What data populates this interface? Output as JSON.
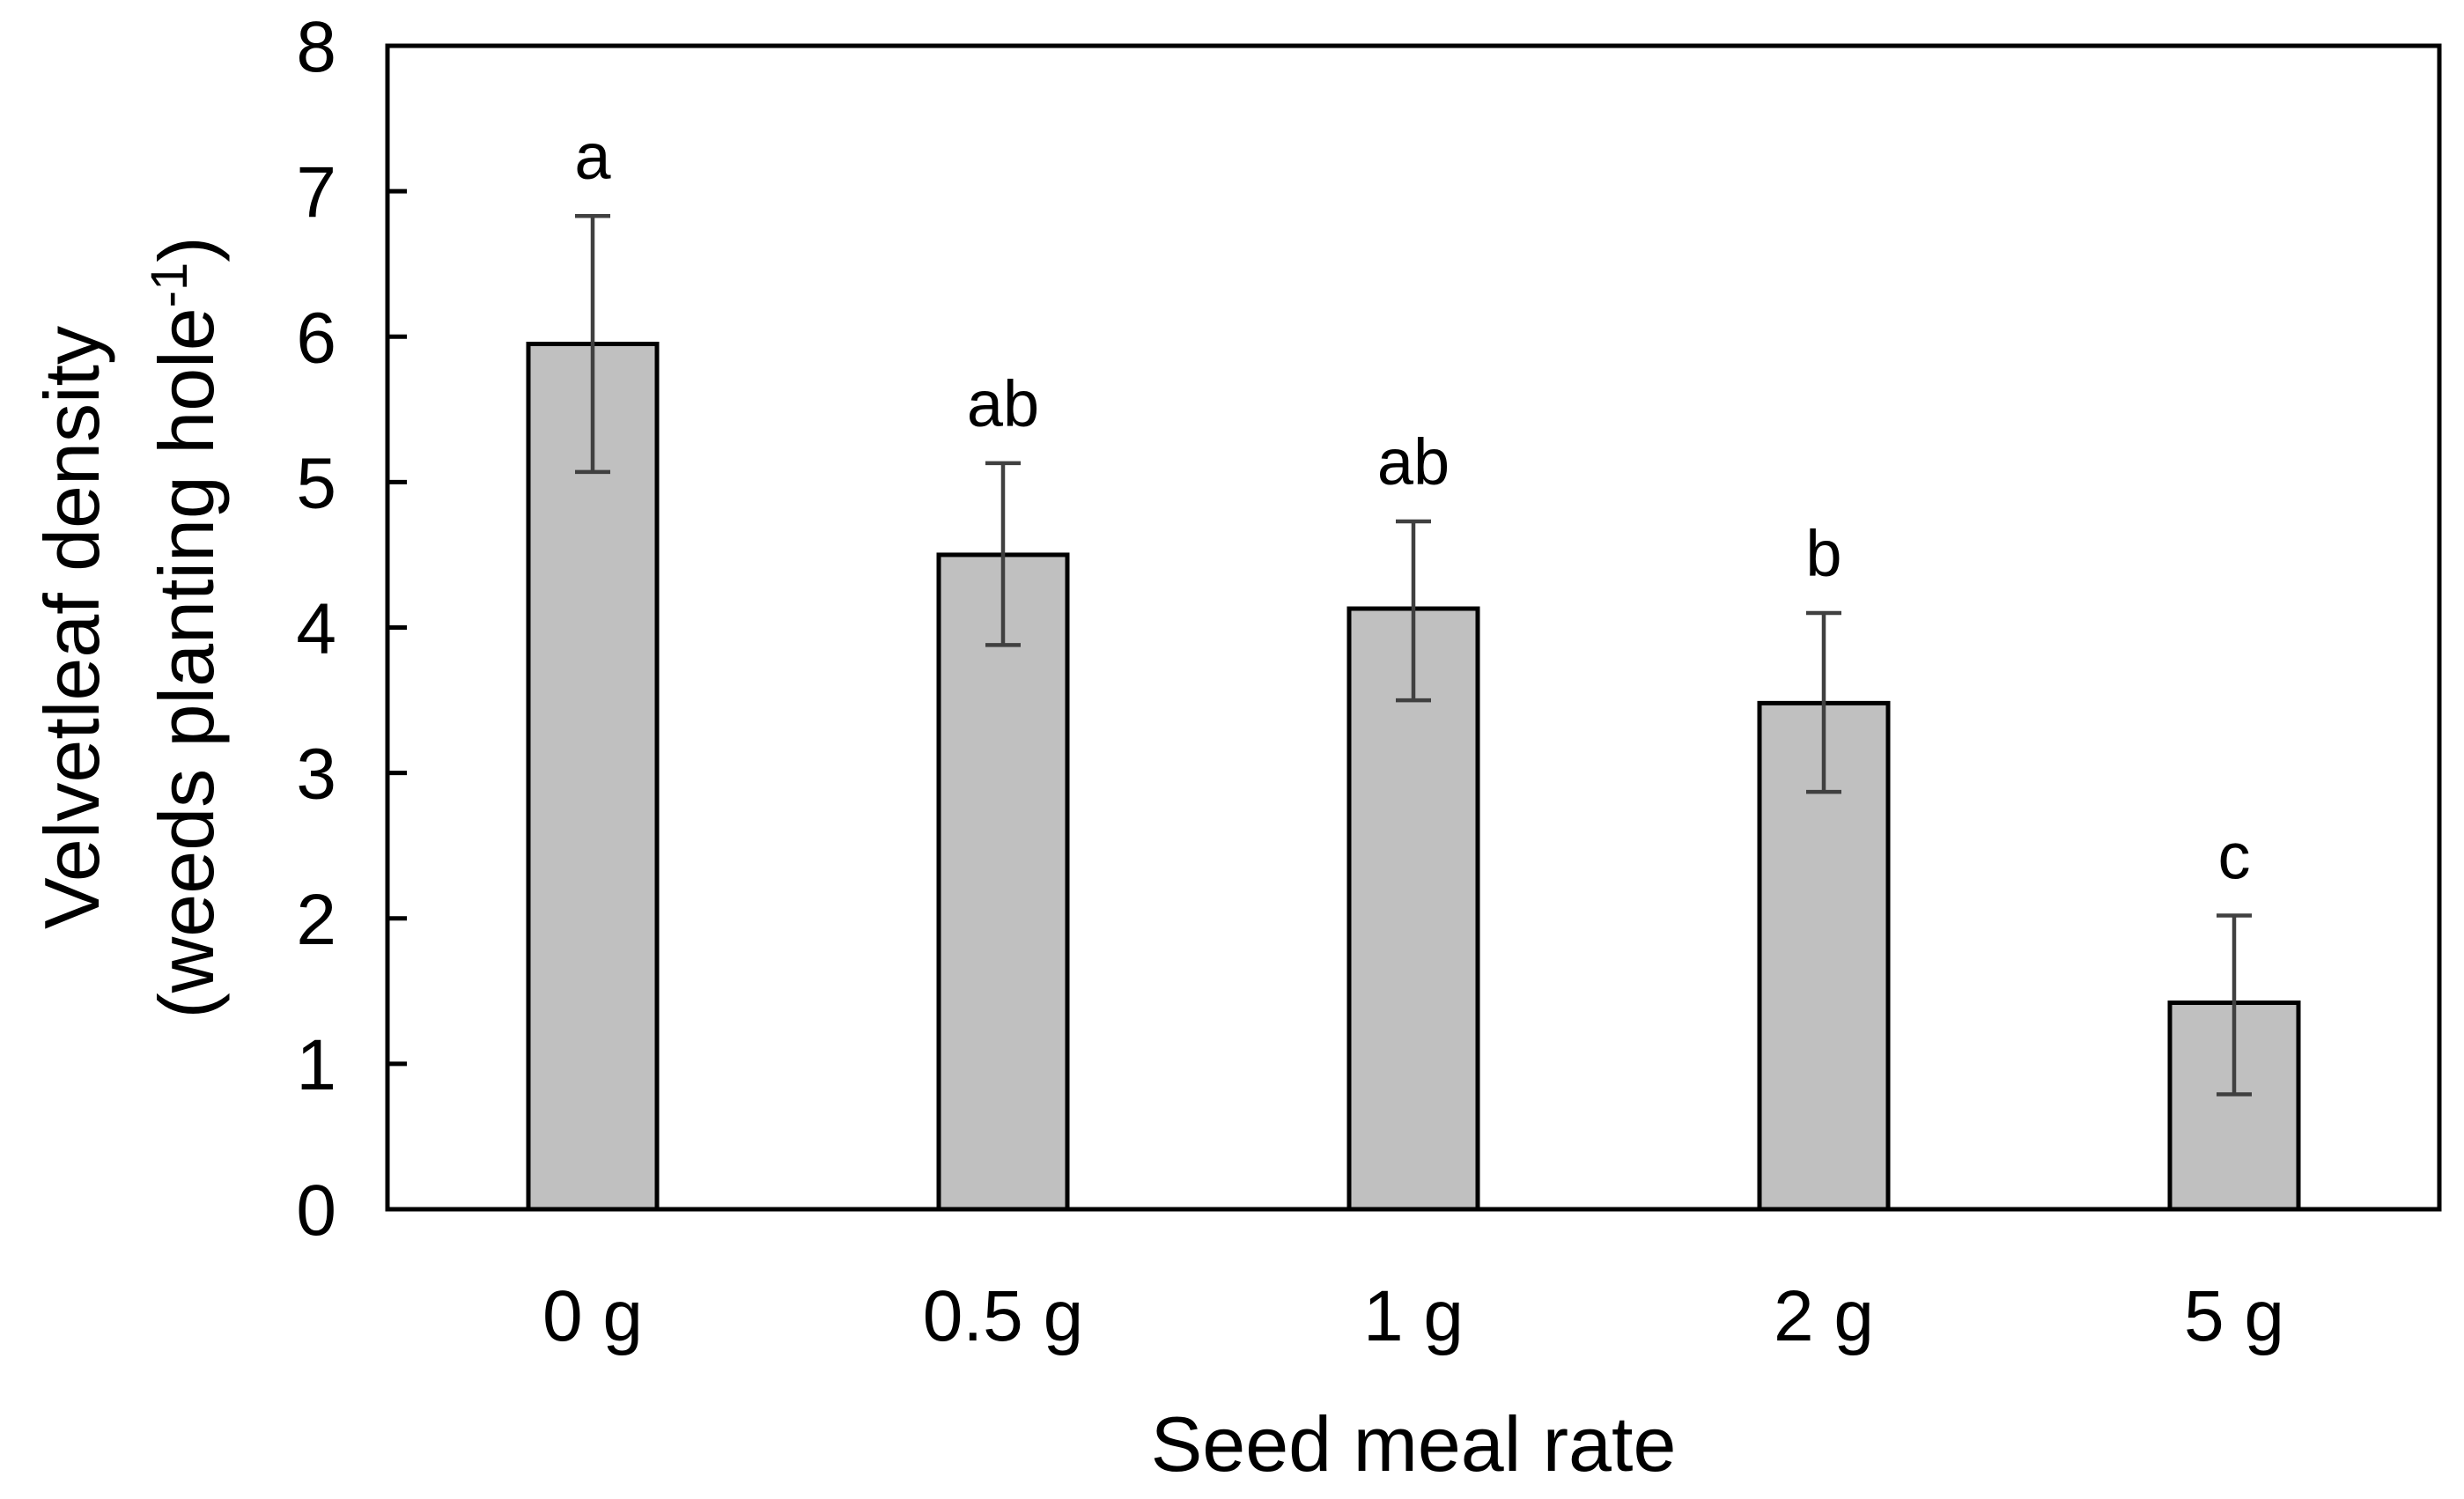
{
  "chart_data": {
    "type": "bar",
    "title": "",
    "xlabel": "Seed meal rate",
    "ylabel_line1": "Velvetleaf density",
    "ylabel_line2_main": "(weeds planting hole",
    "ylabel_line2_sup": "-1",
    "ylabel_line2_end": ")",
    "categories": [
      "0 g",
      "0.5 g",
      "1 g",
      "2 g",
      "5 g"
    ],
    "values": [
      5.95,
      4.5,
      4.13,
      3.48,
      1.42
    ],
    "error_low": [
      5.07,
      3.88,
      3.5,
      2.87,
      0.79
    ],
    "error_high": [
      6.83,
      5.13,
      4.73,
      4.1,
      2.02
    ],
    "significance": [
      "a",
      "ab",
      "ab",
      "b",
      "c"
    ],
    "ylim": [
      0,
      8
    ],
    "yticks": [
      "0",
      "1",
      "2",
      "3",
      "4",
      "5",
      "6",
      "7",
      "8"
    ],
    "bar_color": "#c0c0c0",
    "error_color": "#404040",
    "grid": false,
    "legend": "none"
  }
}
